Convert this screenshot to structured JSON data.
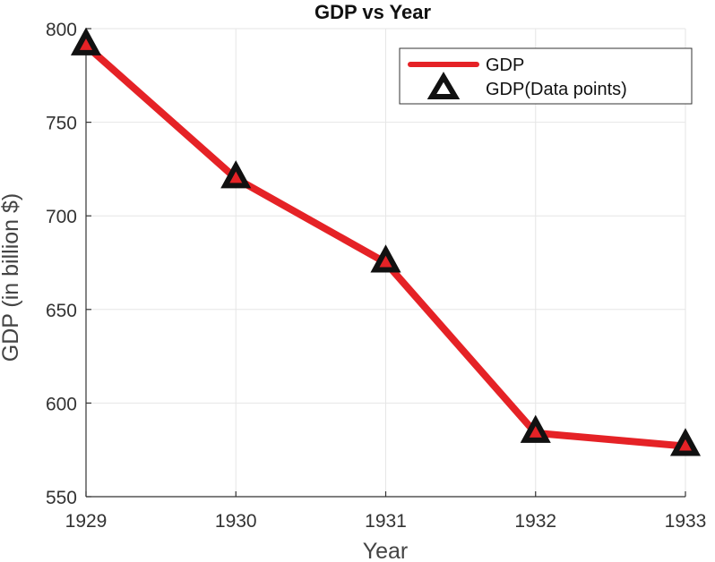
{
  "chart_data": {
    "type": "line",
    "title": "GDP vs Year",
    "xlabel": "Year",
    "ylabel": "GDP (in billion $)",
    "x": [
      1929,
      1930,
      1931,
      1932,
      1933
    ],
    "xlim": [
      1929,
      1933
    ],
    "ylim": [
      550,
      800
    ],
    "xticks": [
      "1929",
      "1930",
      "1931",
      "1932",
      "1933"
    ],
    "yticks": [
      "550",
      "600",
      "650",
      "700",
      "750",
      "800"
    ],
    "grid": true,
    "legend_position": "top-right",
    "series": [
      {
        "name": "GDP",
        "values": [
          791,
          720,
          675,
          584,
          577
        ],
        "color": "#e52226",
        "marker": "none"
      },
      {
        "name": "GDP(Data points)",
        "values": [
          791,
          720,
          675,
          584,
          577
        ],
        "color": "#111111",
        "marker": "triangle"
      }
    ]
  }
}
